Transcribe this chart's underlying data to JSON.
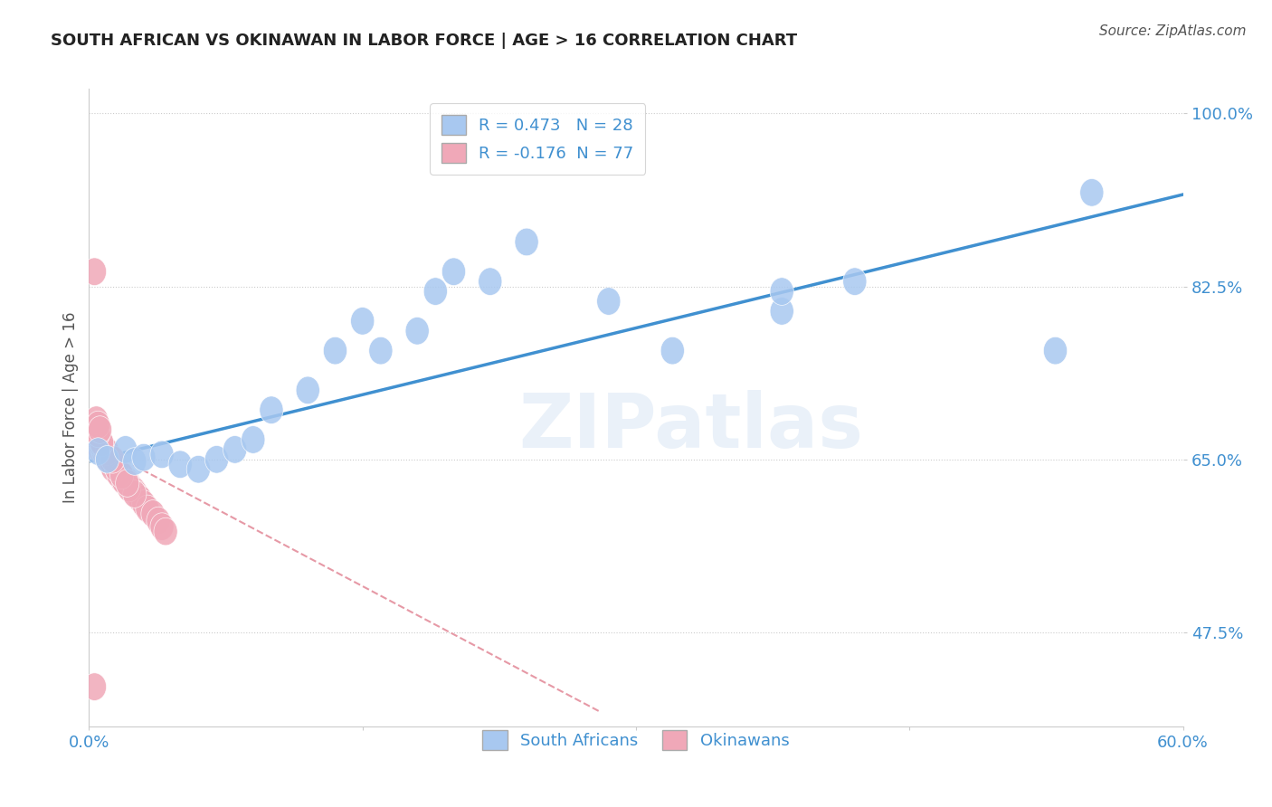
{
  "title": "SOUTH AFRICAN VS OKINAWAN IN LABOR FORCE | AGE > 16 CORRELATION CHART",
  "source": "Source: ZipAtlas.com",
  "ylabel": "In Labor Force | Age > 16",
  "xlim": [
    0.0,
    0.6
  ],
  "ylim": [
    0.38,
    1.025
  ],
  "xtick_positions": [
    0.0,
    0.15,
    0.3,
    0.45,
    0.6
  ],
  "xtick_labels": [
    "0.0%",
    "",
    "",
    "",
    "60.0%"
  ],
  "ytick_positions": [
    0.475,
    0.65,
    0.825,
    1.0
  ],
  "ytick_labels": [
    "47.5%",
    "65.0%",
    "82.5%",
    "100.0%"
  ],
  "blue_R": 0.473,
  "blue_N": 28,
  "pink_R": -0.176,
  "pink_N": 77,
  "blue_color": "#a8c8f0",
  "pink_color": "#f0a8b8",
  "line_blue_color": "#4090d0",
  "line_pink_color": "#e08090",
  "background_color": "#ffffff",
  "watermark": "ZIPatlas",
  "blue_line_x0": 0.0,
  "blue_line_x1": 0.6,
  "blue_line_y0": 0.648,
  "blue_line_y1": 0.918,
  "pink_line_x0": 0.0,
  "pink_line_x1": 0.28,
  "pink_line_y0": 0.668,
  "pink_line_y1": 0.395,
  "blue_x": [
    0.005,
    0.01,
    0.02,
    0.025,
    0.03,
    0.04,
    0.05,
    0.06,
    0.07,
    0.08,
    0.09,
    0.1,
    0.12,
    0.135,
    0.15,
    0.16,
    0.18,
    0.19,
    0.2,
    0.22,
    0.24,
    0.285,
    0.32,
    0.38,
    0.42,
    0.53,
    0.55,
    0.38
  ],
  "blue_y": [
    0.658,
    0.65,
    0.66,
    0.648,
    0.652,
    0.655,
    0.645,
    0.64,
    0.65,
    0.66,
    0.67,
    0.7,
    0.72,
    0.76,
    0.79,
    0.76,
    0.78,
    0.82,
    0.84,
    0.83,
    0.87,
    0.81,
    0.76,
    0.8,
    0.83,
    0.76,
    0.92,
    0.82
  ],
  "pink_x": [
    0.002,
    0.003,
    0.004,
    0.005,
    0.006,
    0.007,
    0.008,
    0.009,
    0.01,
    0.011,
    0.012,
    0.013,
    0.014,
    0.015,
    0.016,
    0.017,
    0.018,
    0.019,
    0.02,
    0.021,
    0.022,
    0.023,
    0.024,
    0.025,
    0.026,
    0.027,
    0.028,
    0.03,
    0.032,
    0.035,
    0.038,
    0.04,
    0.042,
    0.004,
    0.006,
    0.008,
    0.01,
    0.012,
    0.015,
    0.018,
    0.003,
    0.005,
    0.007,
    0.009,
    0.011,
    0.013,
    0.016,
    0.019,
    0.022,
    0.025,
    0.004,
    0.006,
    0.008,
    0.01,
    0.003,
    0.005,
    0.007,
    0.009,
    0.012,
    0.015,
    0.018,
    0.021,
    0.003,
    0.005,
    0.007,
    0.01,
    0.013,
    0.003,
    0.005,
    0.007,
    0.003,
    0.005,
    0.003,
    0.004,
    0.005,
    0.006,
    0.003
  ],
  "pink_y": [
    0.67,
    0.668,
    0.665,
    0.663,
    0.66,
    0.66,
    0.658,
    0.656,
    0.655,
    0.652,
    0.65,
    0.648,
    0.645,
    0.643,
    0.64,
    0.638,
    0.635,
    0.633,
    0.63,
    0.628,
    0.625,
    0.622,
    0.62,
    0.618,
    0.615,
    0.612,
    0.61,
    0.605,
    0.6,
    0.595,
    0.588,
    0.582,
    0.577,
    0.672,
    0.665,
    0.658,
    0.652,
    0.645,
    0.638,
    0.63,
    0.675,
    0.668,
    0.661,
    0.654,
    0.648,
    0.641,
    0.635,
    0.628,
    0.621,
    0.615,
    0.672,
    0.665,
    0.658,
    0.651,
    0.678,
    0.671,
    0.664,
    0.657,
    0.648,
    0.641,
    0.634,
    0.626,
    0.68,
    0.673,
    0.666,
    0.658,
    0.65,
    0.682,
    0.675,
    0.667,
    0.683,
    0.676,
    0.84,
    0.69,
    0.685,
    0.68,
    0.42
  ]
}
